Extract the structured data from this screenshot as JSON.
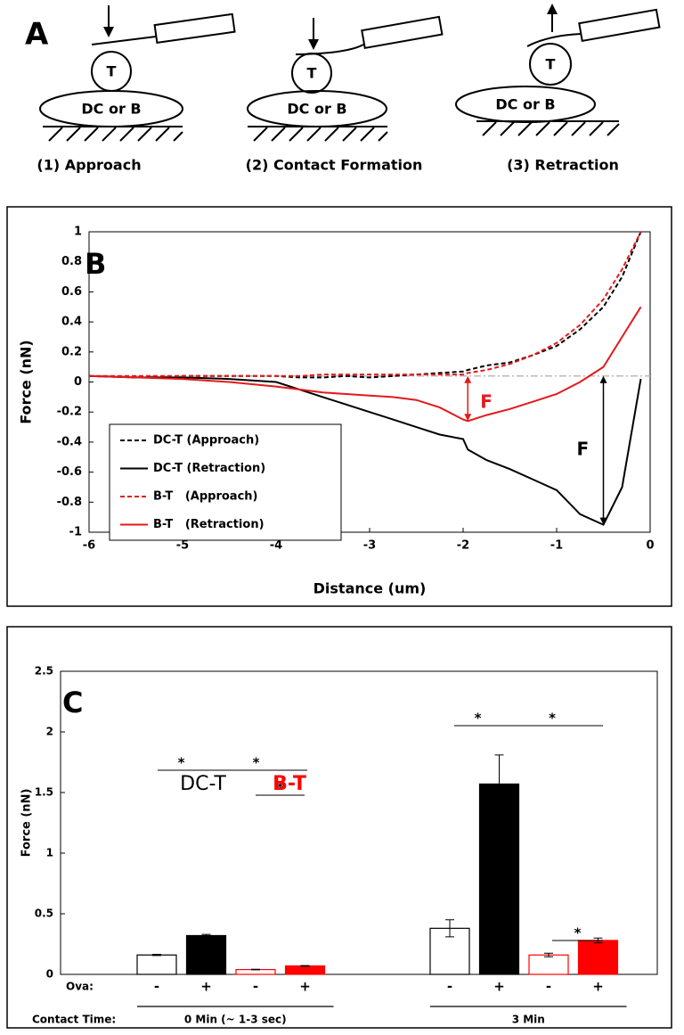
{
  "panel_a": {
    "label": "A",
    "cell_label": "T",
    "substrate_label": "DC or B",
    "steps": [
      "(1) Approach",
      "(2) Contact Formation",
      "(3) Retraction"
    ]
  },
  "chart_data": [
    {
      "type": "line",
      "panel_label": "B",
      "x_label": "Distance (um)",
      "y_label": "Force (nN)",
      "xlim": [
        -6,
        0
      ],
      "ylim": [
        -1,
        1
      ],
      "xticks": [
        -6,
        -5,
        -4,
        -3,
        -2,
        -1,
        0
      ],
      "yticks": [
        -1,
        -0.8,
        -0.6,
        -0.4,
        -0.2,
        0,
        0.2,
        0.4,
        0.6,
        0.8,
        1
      ],
      "baseline": 0.04,
      "x": [
        -6,
        -5.5,
        -5,
        -4.5,
        -4,
        -3.75,
        -3.5,
        -3.25,
        -3,
        -2.75,
        -2.5,
        -2.25,
        -2,
        -1.95,
        -1.75,
        -1.5,
        -1.25,
        -1,
        -0.75,
        -0.5,
        -0.3,
        -0.1
      ],
      "series": [
        {
          "name": "DC-T (Approach)",
          "color": "#000000",
          "style": "dashed",
          "values": [
            0.04,
            0.03,
            0.04,
            0.04,
            0.04,
            0.03,
            0.03,
            0.04,
            0.03,
            0.04,
            0.05,
            0.06,
            0.07,
            0.08,
            0.11,
            0.13,
            0.18,
            0.24,
            0.35,
            0.5,
            0.7,
            1.0
          ]
        },
        {
          "name": "DC-T (Retraction)",
          "color": "#000000",
          "style": "solid",
          "values": [
            0.04,
            0.03,
            0.03,
            0.02,
            0.0,
            -0.05,
            -0.1,
            -0.15,
            -0.2,
            -0.25,
            -0.3,
            -0.35,
            -0.38,
            -0.45,
            -0.52,
            -0.58,
            -0.65,
            -0.72,
            -0.88,
            -0.95,
            -0.7,
            0.02
          ]
        },
        {
          "name": "B-T   (Approach)",
          "color": "#e31a1c",
          "style": "dashed",
          "values": [
            0.04,
            0.04,
            0.04,
            0.04,
            0.04,
            0.04,
            0.05,
            0.05,
            0.05,
            0.05,
            0.05,
            0.05,
            0.05,
            0.06,
            0.08,
            0.12,
            0.18,
            0.26,
            0.38,
            0.55,
            0.75,
            1.0
          ]
        },
        {
          "name": "B-T   (Retraction)",
          "color": "#e31a1c",
          "style": "solid",
          "values": [
            0.04,
            0.03,
            0.02,
            0.0,
            -0.03,
            -0.05,
            -0.07,
            -0.08,
            -0.09,
            -0.1,
            -0.12,
            -0.17,
            -0.25,
            -0.26,
            -0.22,
            -0.18,
            -0.13,
            -0.08,
            0.0,
            0.1,
            0.3,
            0.5
          ]
        }
      ],
      "annotations": [
        {
          "text": "F",
          "x": -1.95,
          "y": -0.26,
          "color": "#e31a1c"
        },
        {
          "text": "F",
          "x": -0.5,
          "y": -0.95,
          "color": "#000000"
        }
      ]
    },
    {
      "type": "bar",
      "panel_label": "C",
      "y_label": "Force (nN)",
      "ylim": [
        0,
        2.5
      ],
      "yticks": [
        0,
        0.5,
        1,
        1.5,
        2,
        2.5
      ],
      "ova_title": "Ova:",
      "ova_labels": [
        "-",
        "+",
        "-",
        "+",
        "-",
        "+",
        "-",
        "+"
      ],
      "contact_title": "Contact Time:",
      "groups": [
        "0 Min (~ 1-3 sec)",
        "3 Min"
      ],
      "series": [
        {
          "name": "DC-T",
          "color": "#000000",
          "fills": [
            "#ffffff",
            "#000000",
            "#ffffff",
            "#000000"
          ],
          "values": [
            0.16,
            0.32,
            0.38,
            1.57
          ],
          "errors": [
            0.005,
            0.01,
            0.07,
            0.24
          ]
        },
        {
          "name": "B-T",
          "color": "#ff0000",
          "fills": [
            "#ffffff",
            "#ff0000",
            "#ffffff",
            "#ff0000"
          ],
          "values": [
            0.04,
            0.07,
            0.16,
            0.28
          ],
          "errors": [
            0.002,
            0.003,
            0.015,
            0.02
          ]
        }
      ],
      "annotations": [
        "*",
        "*",
        "*",
        "*",
        "*",
        "*"
      ]
    }
  ]
}
